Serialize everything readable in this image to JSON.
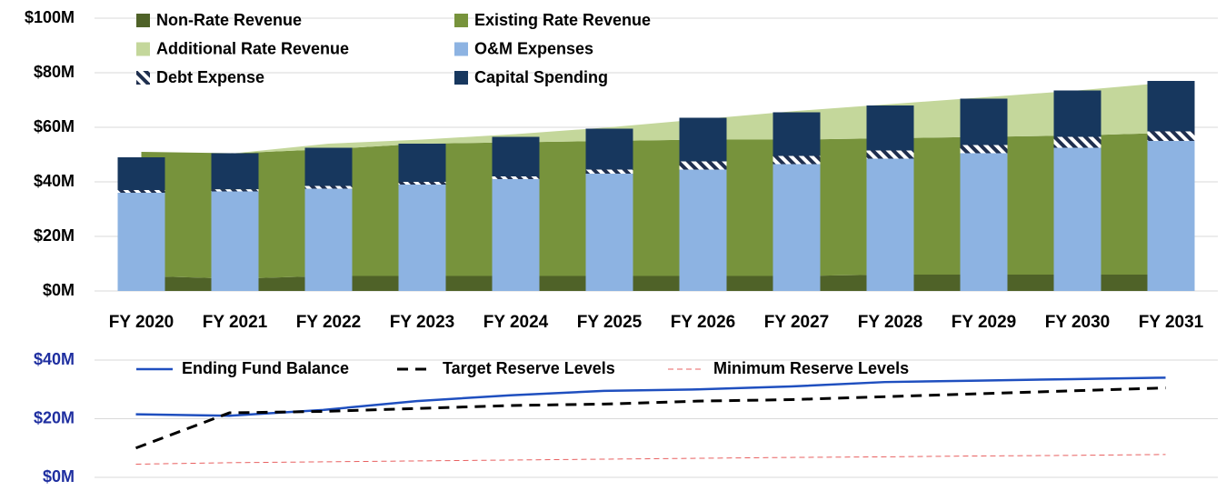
{
  "chart_data": [
    {
      "type": "combo",
      "categories": [
        "FY 2020",
        "FY 2021",
        "FY 2022",
        "FY 2023",
        "FY 2024",
        "FY 2025",
        "FY 2026",
        "FY 2027",
        "FY 2028",
        "FY 2029",
        "FY 2030",
        "FY 2031"
      ],
      "ylim": [
        0,
        100
      ],
      "yticks": [
        {
          "value": 0,
          "label": "$0M"
        },
        {
          "value": 20,
          "label": "$20M"
        },
        {
          "value": 40,
          "label": "$40M"
        },
        {
          "value": 60,
          "label": "$60M"
        },
        {
          "value": 80,
          "label": "$80M"
        },
        {
          "value": 100,
          "label": "$100M"
        }
      ],
      "grid": true,
      "series": [
        {
          "name": "Non-Rate Revenue",
          "mark": "area",
          "color": "#4f6228",
          "values": [
            5.5,
            4.5,
            5.5,
            5.5,
            5.5,
            5.5,
            5.5,
            5.5,
            6,
            6,
            6,
            6
          ]
        },
        {
          "name": "Existing Rate Revenue",
          "mark": "area",
          "color": "#77933c",
          "values": [
            45.5,
            46,
            46.5,
            48.5,
            49,
            49.5,
            50,
            50,
            50,
            50.5,
            51,
            52
          ]
        },
        {
          "name": "Additional Rate Revenue",
          "mark": "area",
          "color": "#c4d79b",
          "values": [
            0,
            0,
            2,
            1.5,
            3,
            5,
            7.5,
            10.5,
            12.5,
            14.5,
            16.5,
            18.5
          ]
        },
        {
          "name": "O&M Expenses",
          "mark": "bar",
          "color": "#8db3e2",
          "values": [
            36,
            36.5,
            37.5,
            39,
            41,
            43,
            44.5,
            46.5,
            48.5,
            50.5,
            52.5,
            55
          ]
        },
        {
          "name": "Debt Expense",
          "mark": "bar",
          "color": "#1f2f4f",
          "pattern": "hatch",
          "values": [
            1,
            0.8,
            1,
            1,
            1,
            1.5,
            3,
            3,
            3,
            3,
            4,
            3.5
          ]
        },
        {
          "name": "Capital Spending",
          "mark": "bar",
          "color": "#17375e",
          "values": [
            12,
            13.2,
            14,
            14,
            14.5,
            15,
            16,
            16,
            16.5,
            17,
            17,
            18.5
          ]
        }
      ]
    },
    {
      "type": "line",
      "ylim": [
        0,
        40
      ],
      "yticks": [
        {
          "value": 0,
          "label": "$0M"
        },
        {
          "value": 20,
          "label": "$20M"
        },
        {
          "value": 40,
          "label": "$40M"
        }
      ],
      "grid": true,
      "series": [
        {
          "name": "Ending Fund Balance",
          "color": "#1f4fbf",
          "dash": "solid",
          "values": [
            21.5,
            21,
            23,
            26,
            28,
            29.5,
            30,
            31,
            32.5,
            33,
            33.5,
            34
          ]
        },
        {
          "name": "Target Reserve Levels",
          "color": "#000000",
          "dash": "dashed",
          "values": [
            10,
            22,
            22.5,
            23.5,
            24.5,
            25,
            26,
            26.5,
            27.5,
            28.5,
            29.5,
            30.5
          ]
        },
        {
          "name": "Minimum Reserve Levels",
          "color": "#e86060",
          "dash": "thin-dashed",
          "values": [
            4.5,
            5,
            5.3,
            5.6,
            5.9,
            6.2,
            6.5,
            6.8,
            7,
            7.3,
            7.5,
            7.8
          ]
        }
      ]
    }
  ]
}
